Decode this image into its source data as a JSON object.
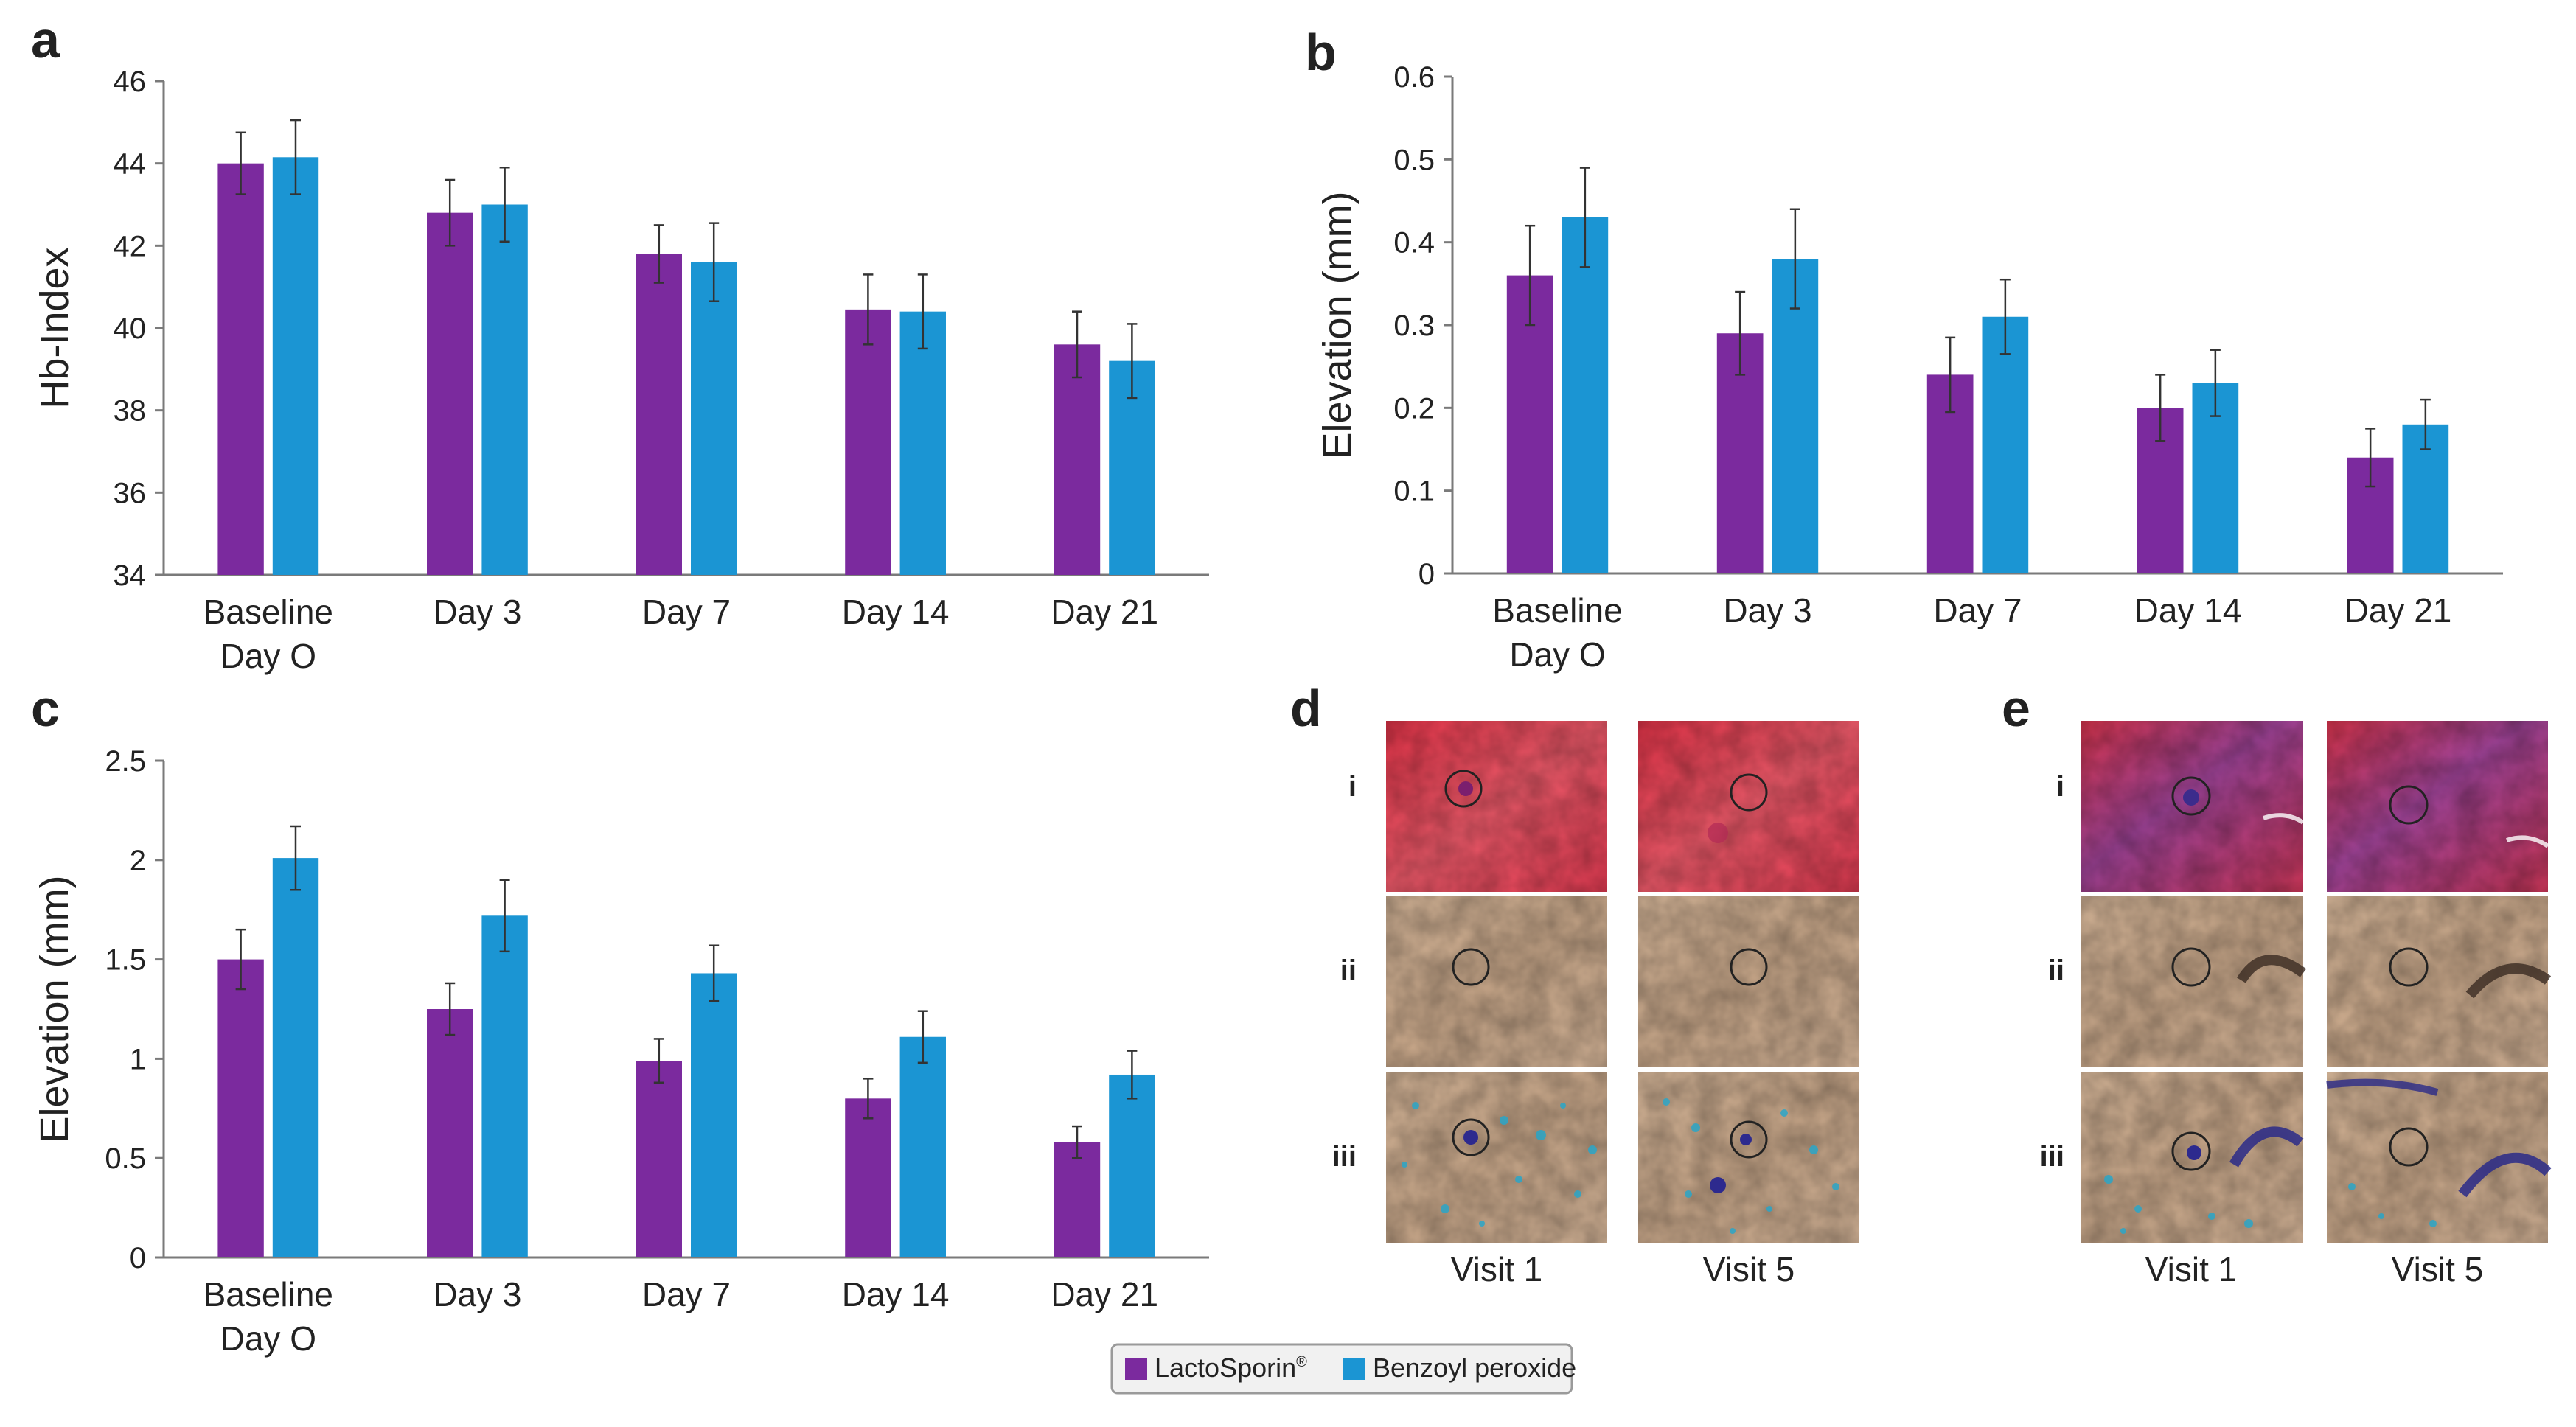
{
  "colors": {
    "series1": "#7B2A9E",
    "series2": "#1B95D3",
    "axis": "#7a7a7a",
    "text": "#222222",
    "legend_bg": "#f1f1f1",
    "legend_border": "#9a9a9a"
  },
  "legend": {
    "series1_label": "LactoSporin",
    "series1_sup": "®",
    "series2_label": "Benzoyl peroxide"
  },
  "chart_data": [
    {
      "panel": "a",
      "type": "bar",
      "ylabel": "Hb-Index",
      "xlabel": "",
      "ylim": [
        34,
        46
      ],
      "yticks": [
        "34",
        "36",
        "38",
        "40",
        "42",
        "44",
        "46"
      ],
      "categories": [
        [
          "Baseline",
          "Day O"
        ],
        [
          "Day 3"
        ],
        [
          "Day 7"
        ],
        [
          "Day 14"
        ],
        [
          "Day 21"
        ]
      ],
      "series": [
        {
          "name": "LactoSporin",
          "values": [
            44.0,
            42.8,
            41.8,
            40.45,
            39.6
          ],
          "errors": [
            0.75,
            0.8,
            0.7,
            0.85,
            0.8
          ]
        },
        {
          "name": "Benzoyl peroxide",
          "values": [
            44.15,
            43.0,
            41.6,
            40.4,
            39.2
          ],
          "errors": [
            0.9,
            0.9,
            0.95,
            0.9,
            0.9
          ]
        }
      ]
    },
    {
      "panel": "b",
      "type": "bar",
      "ylabel": "Elevation (mm)",
      "xlabel": "",
      "ylim": [
        0,
        0.6
      ],
      "yticks": [
        "0",
        "0.1",
        "0.2",
        "0.3",
        "0.4",
        "0.5",
        "0.6"
      ],
      "categories": [
        [
          "Baseline",
          "Day O"
        ],
        [
          "Day 3"
        ],
        [
          "Day 7"
        ],
        [
          "Day 14"
        ],
        [
          "Day 21"
        ]
      ],
      "series": [
        {
          "name": "LactoSporin",
          "values": [
            0.36,
            0.29,
            0.24,
            0.2,
            0.14
          ],
          "errors": [
            0.06,
            0.05,
            0.045,
            0.04,
            0.035
          ]
        },
        {
          "name": "Benzoyl peroxide",
          "values": [
            0.43,
            0.38,
            0.31,
            0.23,
            0.18
          ],
          "errors": [
            0.06,
            0.06,
            0.045,
            0.04,
            0.03
          ]
        }
      ]
    },
    {
      "panel": "c",
      "type": "bar",
      "ylabel": "Elevation (mm)",
      "xlabel": "",
      "ylim": [
        0,
        2.5
      ],
      "yticks": [
        "0",
        "0.5",
        "1",
        "1.5",
        "2",
        "2.5"
      ],
      "categories": [
        [
          "Baseline",
          "Day O"
        ],
        [
          "Day 3"
        ],
        [
          "Day 7"
        ],
        [
          "Day 14"
        ],
        [
          "Day 21"
        ]
      ],
      "series": [
        {
          "name": "LactoSporin",
          "values": [
            1.5,
            1.25,
            0.99,
            0.8,
            0.58
          ],
          "errors": [
            0.15,
            0.13,
            0.11,
            0.1,
            0.08
          ]
        },
        {
          "name": "Benzoyl peroxide",
          "values": [
            2.01,
            1.72,
            1.43,
            1.11,
            0.92
          ],
          "errors": [
            0.16,
            0.18,
            0.14,
            0.13,
            0.12
          ]
        }
      ]
    }
  ],
  "image_panels": [
    {
      "panel": "d",
      "rows": [
        "i",
        "ii",
        "iii"
      ],
      "columns": [
        "Visit 1",
        "Visit 5"
      ]
    },
    {
      "panel": "e",
      "rows": [
        "i",
        "ii",
        "iii"
      ],
      "columns": [
        "Visit 1",
        "Visit 5"
      ]
    }
  ]
}
